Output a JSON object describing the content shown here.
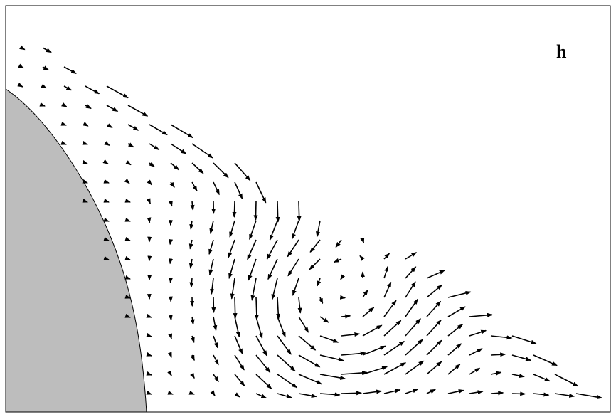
{
  "figure": {
    "panel_label": "h",
    "colors": {
      "body_fill": "#bdbdbd",
      "arrow": "#000000",
      "frame": "#000000",
      "background": "#ffffff"
    },
    "description_type": "velocity vector field with recirculating vortex behind a curved body"
  }
}
